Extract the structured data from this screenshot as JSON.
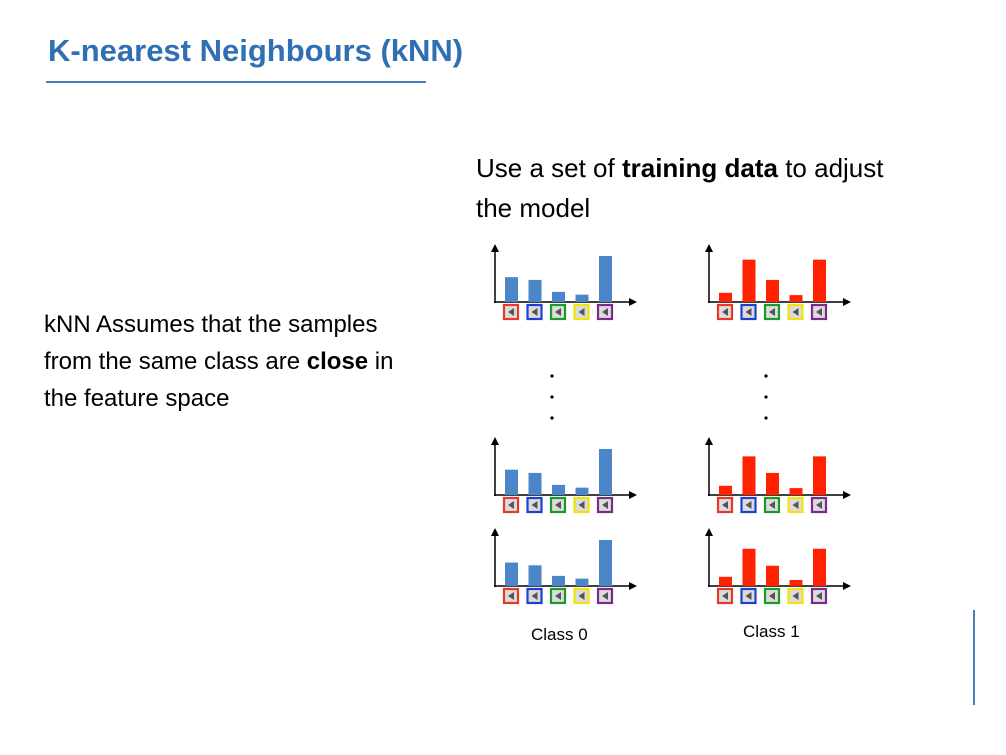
{
  "slide": {
    "title": "K-nearest Neighbours (kNN)",
    "left_text": {
      "part1": "kNN Assumes that the samples from the same class are ",
      "bold": "close",
      "part2": " in the feature space"
    },
    "right_text": {
      "part1": "Use a set of ",
      "bold": "training data",
      "part2": " to adjust the model"
    }
  },
  "chart_data": {
    "type": "bar",
    "description_colors": {
      "class0": "#4a86c8",
      "class1": "#ff2200"
    },
    "feature_box_colors": [
      "#e8382a",
      "#1f3fcf",
      "#1a9a2a",
      "#f2e20c",
      "#7b2a8a"
    ],
    "classes": [
      {
        "label": "Class 0",
        "color": "#4a86c8",
        "histograms": [
          [
            0.54,
            0.48,
            0.22,
            0.16,
            1.0
          ],
          [
            0.55,
            0.48,
            0.22,
            0.16,
            1.0
          ],
          [
            0.51,
            0.45,
            0.22,
            0.16,
            1.0
          ]
        ]
      },
      {
        "label": "Class 1",
        "color": "#ff2200",
        "histograms": [
          [
            0.2,
            0.92,
            0.48,
            0.15,
            0.92
          ],
          [
            0.2,
            0.84,
            0.48,
            0.15,
            0.84
          ],
          [
            0.2,
            0.81,
            0.44,
            0.13,
            0.81
          ]
        ]
      }
    ],
    "ellipsis": "·"
  }
}
